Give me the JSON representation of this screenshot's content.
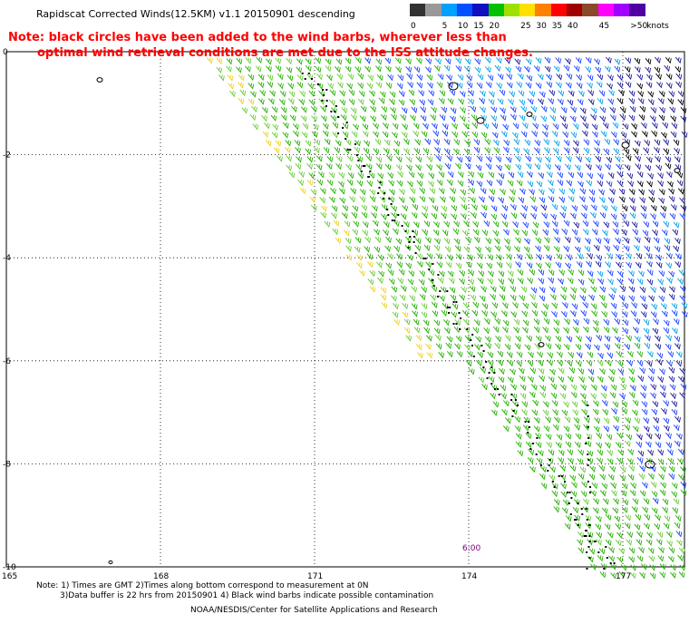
{
  "title": "Rapidscat Corrected Winds(12.5KM) v1.1 20150901 descending",
  "note": {
    "line1": "Note: black circles have been added to the wind barbs, wherever less than",
    "line2": "optimal wind retrieval conditions are met due to the ISS attitude changes."
  },
  "legend": {
    "unit": "knots",
    "bins": [
      {
        "label": "0",
        "color": "#333333"
      },
      {
        "label": "",
        "color": "#999999"
      },
      {
        "label": "5",
        "color": "#00a0ff"
      },
      {
        "label": "10",
        "color": "#0050ff"
      },
      {
        "label": "15",
        "color": "#1010c0"
      },
      {
        "label": "20",
        "color": "#00c000"
      },
      {
        "label": "",
        "color": "#a0e000"
      },
      {
        "label": "25",
        "color": "#ffe000"
      },
      {
        "label": "30",
        "color": "#ff8000"
      },
      {
        "label": "35",
        "color": "#ff0000"
      },
      {
        "label": "40",
        "color": "#a00000"
      },
      {
        "label": "",
        "color": "#8a4a2a"
      },
      {
        "label": "45",
        "color": "#ff00ff"
      },
      {
        "label": "",
        "color": "#a000ff"
      },
      {
        "label": ">50",
        "color": "#5000a0"
      }
    ]
  },
  "map": {
    "lat_labels": [
      "0",
      "-2",
      "-4",
      "-6",
      "-8",
      "-10"
    ],
    "lon_labels": [
      "165",
      "168",
      "171",
      "174",
      "177"
    ],
    "grid": true,
    "colors": {
      "green": "#22b000",
      "lightgreen": "#66cc33",
      "blue": "#1840ff",
      "cyan": "#00a0e8",
      "navy": "#1a1a9a",
      "yellow": "#f0d020",
      "black": "#000000"
    }
  },
  "pass_time": "6:00",
  "footer": {
    "line1": "Note: 1) Times are GMT 2)Times along bottom correspond to measurement at 0N",
    "line2": "3)Data buffer is 22 hrs from 20150901 4) Black wind barbs indicate possible contamination",
    "line3": "NOAA/NESDIS/Center for Satellite Applications and Research"
  }
}
